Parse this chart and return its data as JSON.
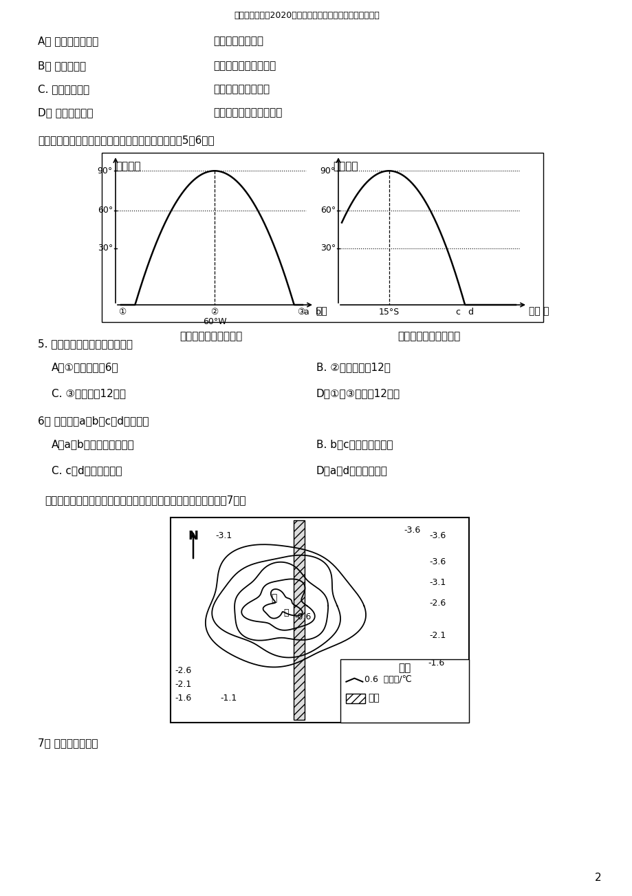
{
  "page_width": 9.2,
  "page_height": 13.02,
  "bg_color": "#ffffff",
  "header_text": "江苏省涟水中兦2020届高三地理上学期第一次阶段检测试题",
  "page_number": "2",
  "optA1": "A。 亚热带季风气候",
  "optA2": "海陆热力性质差异",
  "optB1": "B。 地中海气候",
  "optB2": "副高和西风带交替控制",
  "optC1": "C. 热带沙漠气候",
  "optC2": "副高或信风交替控制",
  "optD1": "D。 热带季风气候",
  "optD2": "气压带和风带季节性移动",
  "intro_text": "读某一时刻太阳高度随经度和纬度变化示意图，完成5～6题。",
  "left_caption": "太阳高度随经度的变化",
  "right_caption": "太阳高度随纬度的变化",
  "q5_text": "5. 对图中各地时间叙述正确的是",
  "q5A": "A。①地地方时为6时",
  "q5B": "B. ②地地方时为12时",
  "q5C": "C. ③地昼长为12小时",
  "q5D": "D。①、③时差为12小时",
  "q6_text": "6。 右图中，a、b、c、d四点比较",
  "q6A": "A。a、b日出方位大致相同",
  "q6B": "B. b、c自转线速度相同",
  "q6C": "C. c、d日落时刻相同",
  "q6D": "D。a、d昼夜长短相同",
  "map_intro": "下图为「北半球某平原城市冬季等温线分布图」。读下图，完成第7题。",
  "q7_text": "7。 该城市可能位于"
}
